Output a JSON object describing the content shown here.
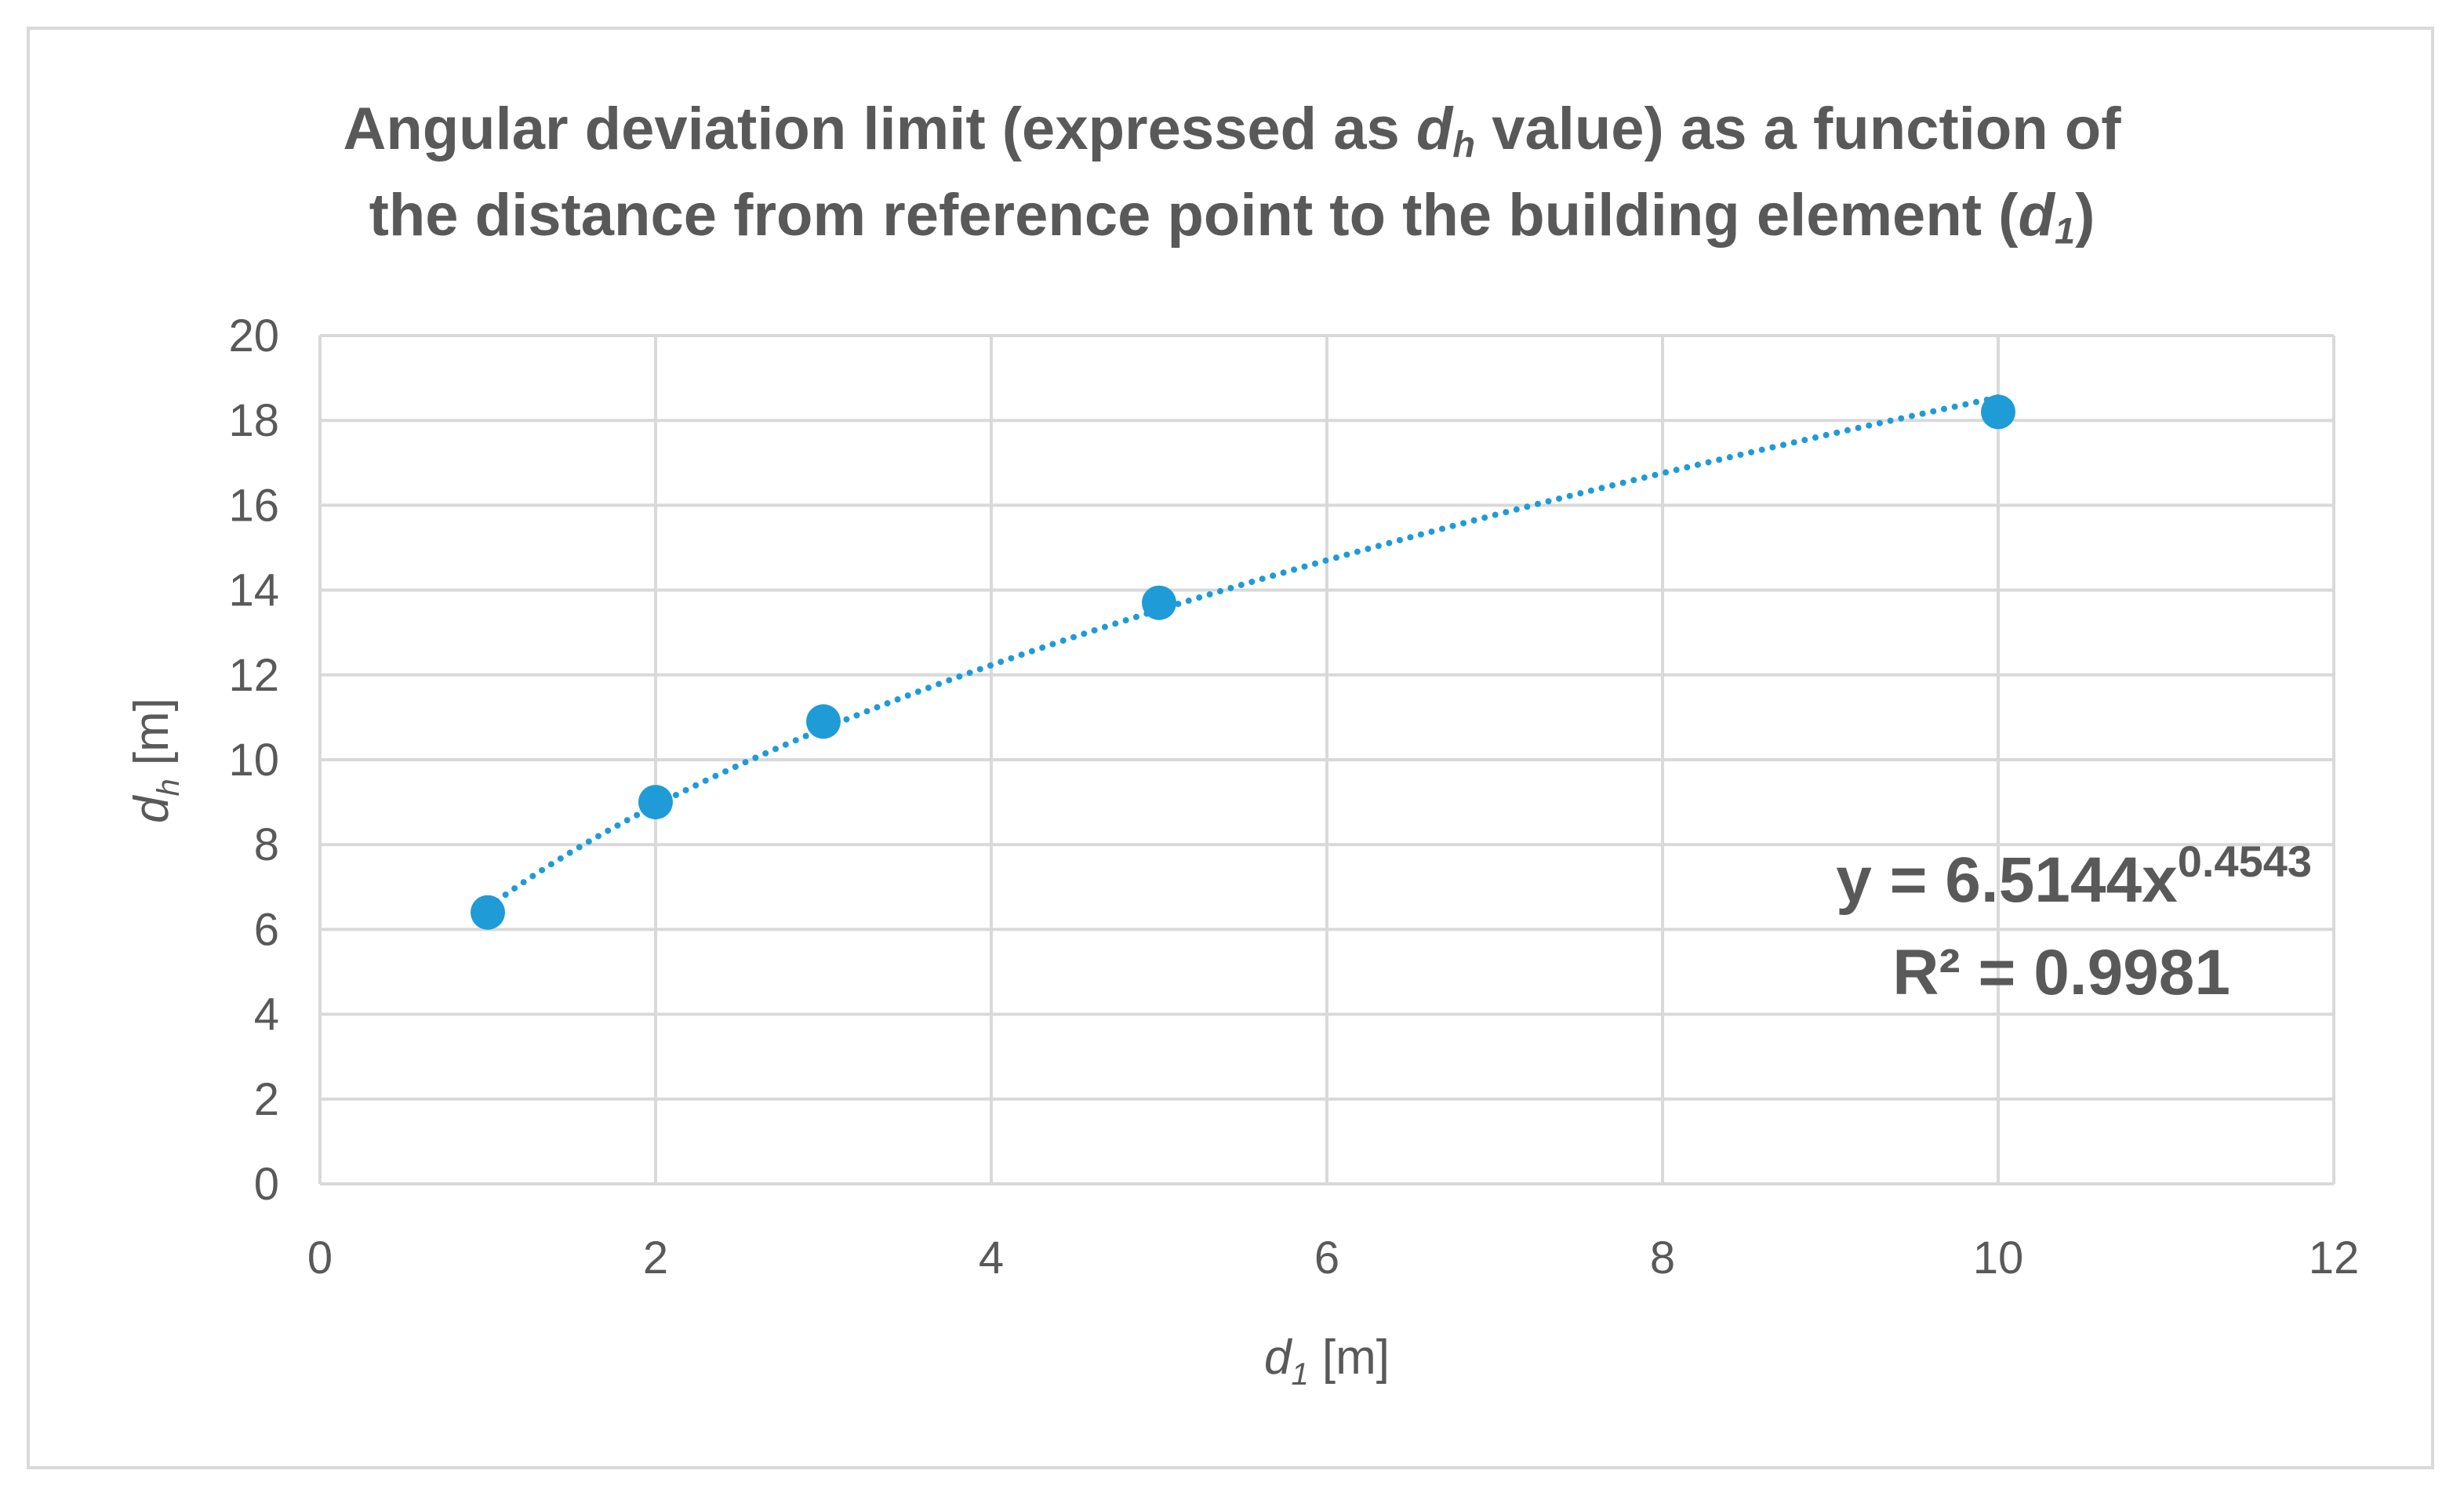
{
  "chart_data": {
    "type": "scatter",
    "title": {
      "line1_before": "Angular deviation limit (expressed as ",
      "line1_var": "d",
      "line1_var_sub": "h",
      "line1_after": " value) as a function of",
      "line2_before": "the distance from reference point to the building element (",
      "line2_var": "d",
      "line2_var_sub": "1",
      "line2_after": ")"
    },
    "xlabel": {
      "var": "d",
      "sub": "1",
      "unit": " [m]"
    },
    "ylabel": {
      "var": "d",
      "sub": "h",
      "unit": " [m]"
    },
    "xlim": [
      0,
      12
    ],
    "ylim": [
      0,
      20
    ],
    "xticks": [
      0,
      2,
      4,
      6,
      8,
      10,
      12
    ],
    "yticks": [
      0,
      2,
      4,
      6,
      8,
      10,
      12,
      14,
      16,
      18,
      20
    ],
    "grid": true,
    "marker_color": "#1f9bd7",
    "grid_color": "#d9d9d9",
    "text_color": "#595959",
    "series": [
      {
        "x": [
          1,
          2,
          3,
          5,
          10
        ],
        "y": [
          6.4,
          9.0,
          10.9,
          13.7,
          18.2
        ]
      }
    ],
    "trendline": {
      "type": "power",
      "coefficient": 6.5144,
      "exponent": 0.4543,
      "x_range": [
        1,
        10
      ],
      "style": "dotted",
      "equation_base": "y = 6.5144x",
      "equation_exponent": "0.4543",
      "r_squared_label": "R² = 0.9981"
    }
  }
}
